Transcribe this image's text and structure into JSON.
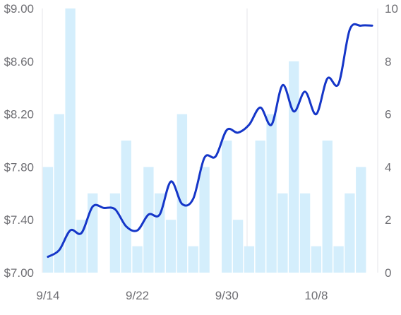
{
  "chart_data": {
    "type": "bar+line",
    "title": "",
    "x": [
      "9/14",
      "9/15",
      "9/16",
      "9/17",
      "9/18",
      "9/19",
      "9/20",
      "9/21",
      "9/22",
      "9/23",
      "9/24",
      "9/25",
      "9/26",
      "9/27",
      "9/28",
      "9/29",
      "9/30",
      "10/1",
      "10/2",
      "10/3",
      "10/4",
      "10/5",
      "10/6",
      "10/7",
      "10/8",
      "10/9",
      "10/10",
      "10/11",
      "10/12",
      "10/13"
    ],
    "x_ticks": [
      "9/14",
      "9/22",
      "9/30",
      "10/8"
    ],
    "grid": {
      "horizontal": false,
      "vertical": true
    },
    "left_axis": {
      "ylim": [
        7.0,
        9.0
      ],
      "ticks": [
        "$7.00",
        "$7.40",
        "$7.80",
        "$8.20",
        "$8.60",
        "$9.00"
      ]
    },
    "right_axis": {
      "ylim": [
        0,
        10
      ],
      "ticks": [
        "0",
        "2",
        "4",
        "6",
        "8",
        "10"
      ]
    },
    "series": [
      {
        "type": "bar",
        "axis": "right",
        "color": "#d4eefc",
        "values": [
          4,
          6,
          10,
          2,
          3,
          0,
          3,
          5,
          1,
          4,
          3,
          2,
          6,
          1,
          4,
          0,
          5,
          2,
          1,
          5,
          6,
          3,
          8,
          3,
          1,
          5,
          1,
          3,
          4,
          0
        ]
      },
      {
        "type": "line",
        "axis": "left",
        "color": "#1536c8",
        "values": [
          7.12,
          7.17,
          7.32,
          7.3,
          7.5,
          7.49,
          7.48,
          7.35,
          7.32,
          7.44,
          7.44,
          7.69,
          7.52,
          7.56,
          7.87,
          7.88,
          8.08,
          8.06,
          8.12,
          8.25,
          8.12,
          8.42,
          8.22,
          8.37,
          8.2,
          8.47,
          8.43,
          8.84,
          8.87,
          8.87
        ]
      }
    ]
  }
}
